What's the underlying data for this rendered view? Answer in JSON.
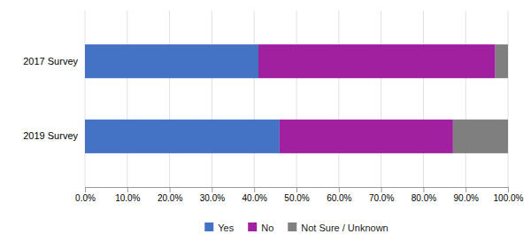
{
  "chart_data": {
    "type": "bar",
    "orientation": "horizontal",
    "stacked": true,
    "categories": [
      "2019 Survey",
      "2017 Survey"
    ],
    "series": [
      {
        "name": "Yes",
        "color": "#4472C4",
        "values": [
          46.0,
          41.0
        ]
      },
      {
        "name": "No",
        "color": "#A020A0",
        "values": [
          41.0,
          56.0
        ]
      },
      {
        "name": "Not Sure / Unknown",
        "color": "#7F7F7F",
        "values": [
          13.0,
          3.0
        ]
      }
    ],
    "xlim": [
      0,
      100
    ],
    "xticks": [
      {
        "value": 0,
        "label": "0.0%"
      },
      {
        "value": 10,
        "label": "10.0%"
      },
      {
        "value": 20,
        "label": "20.0%"
      },
      {
        "value": 30,
        "label": "30.0%"
      },
      {
        "value": 40,
        "label": "40.0%"
      },
      {
        "value": 50,
        "label": "50.0%"
      },
      {
        "value": 60,
        "label": "60.0%"
      },
      {
        "value": 70,
        "label": "70.0%"
      },
      {
        "value": 80,
        "label": "80.0%"
      },
      {
        "value": 90,
        "label": "90.0%"
      },
      {
        "value": 100,
        "label": "100.0%"
      }
    ],
    "grid": true,
    "legend": "bottom"
  }
}
